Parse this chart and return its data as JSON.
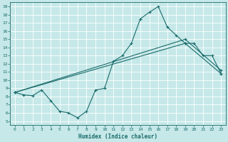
{
  "xlabel": "Humidex (Indice chaleur)",
  "xlim": [
    -0.5,
    23.5
  ],
  "ylim": [
    4.5,
    19.5
  ],
  "xticks": [
    0,
    1,
    2,
    3,
    4,
    5,
    6,
    7,
    8,
    9,
    10,
    11,
    12,
    13,
    14,
    15,
    16,
    17,
    18,
    19,
    20,
    21,
    22,
    23
  ],
  "yticks": [
    5,
    6,
    7,
    8,
    9,
    10,
    11,
    12,
    13,
    14,
    15,
    16,
    17,
    18,
    19
  ],
  "background_color": "#c6e8e8",
  "grid_color": "#b0d8d8",
  "line_color": "#1a6b6b",
  "lines": [
    {
      "x": [
        0,
        1,
        2,
        3,
        4,
        5,
        6,
        7,
        8,
        9,
        10,
        11,
        12,
        13,
        14,
        15,
        16,
        17,
        18,
        19,
        20,
        21,
        22,
        23
      ],
      "y": [
        8.5,
        8.2,
        8.1,
        8.8,
        7.5,
        6.2,
        6.0,
        5.4,
        6.2,
        8.8,
        9.0,
        12.3,
        13.0,
        14.5,
        17.5,
        18.3,
        19.0,
        16.5,
        15.5,
        14.5,
        14.5,
        13.0,
        13.0,
        10.8
      ]
    },
    {
      "x": [
        0,
        19,
        23
      ],
      "y": [
        8.5,
        14.5,
        10.8
      ]
    },
    {
      "x": [
        0,
        19,
        23
      ],
      "y": [
        8.5,
        15.0,
        11.2
      ]
    }
  ]
}
